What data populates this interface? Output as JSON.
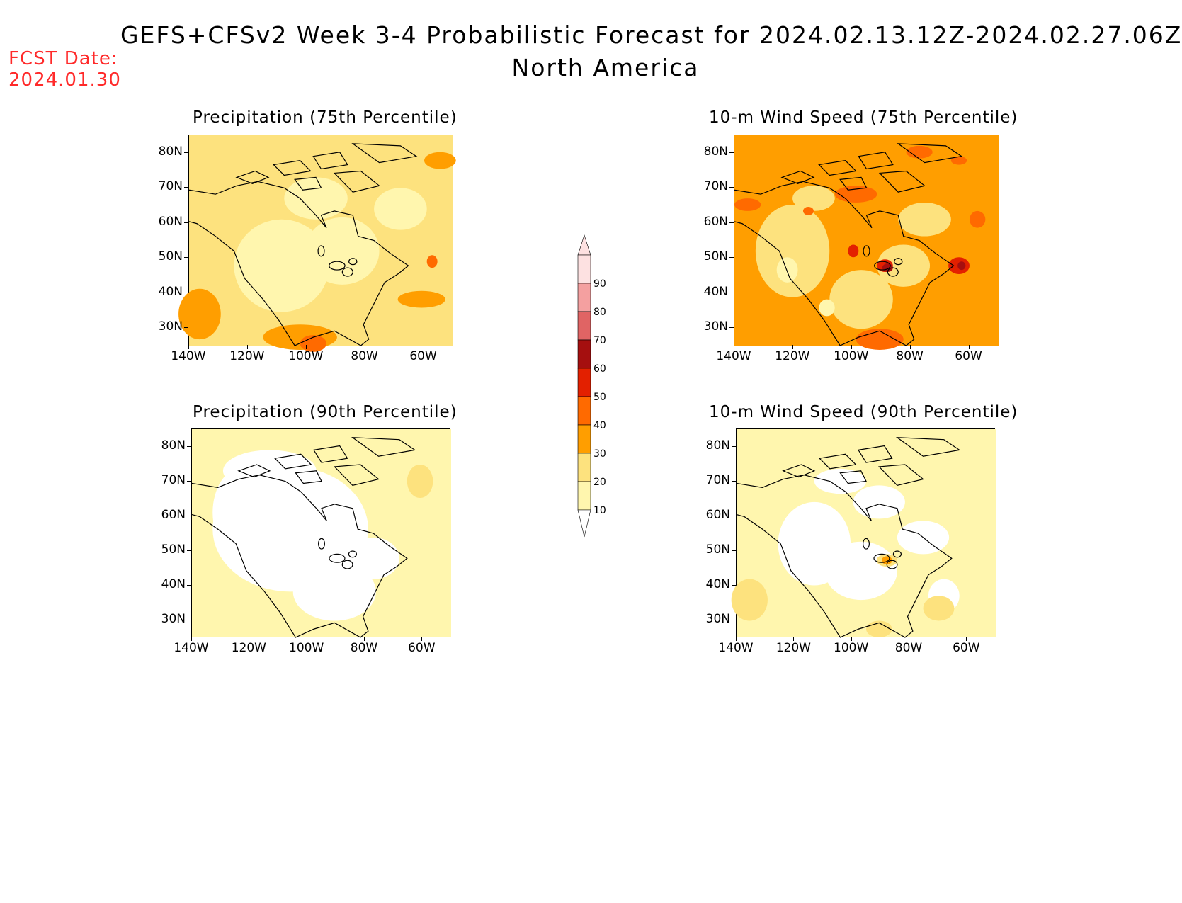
{
  "title": "GEFS+CFSv2 Week 3-4 Probabilistic Forecast for 2024.02.13.12Z-2024.02.27.06Z",
  "subtitle": "North America",
  "fcst_label": "FCST Date:",
  "fcst_date": "2024.01.30",
  "panels": [
    {
      "title": "Precipitation (75th Percentile)",
      "base": "#fde27e",
      "variant": "p75"
    },
    {
      "title": "10-m Wind Speed (75th Percentile)",
      "base": "#ff9e00",
      "variant": "w75"
    },
    {
      "title": "Precipitation (90th Percentile)",
      "base": "#fff6ae",
      "variant": "p90"
    },
    {
      "title": "10-m Wind Speed (90th Percentile)",
      "base": "#fff6ae",
      "variant": "w90"
    }
  ],
  "lat_labels": [
    "80N",
    "70N",
    "60N",
    "50N",
    "40N",
    "30N"
  ],
  "lon_labels": [
    "140W",
    "120W",
    "100W",
    "80W",
    "60W"
  ],
  "colorbar": {
    "labels": [
      "90",
      "80",
      "70",
      "60",
      "50",
      "40",
      "30",
      "20",
      "10"
    ],
    "colors": [
      "#fde1e1",
      "#f4a0a0",
      "#e06464",
      "#a50f0f",
      "#e32000",
      "#ff6a00",
      "#ff9e00",
      "#fde27e",
      "#fff6ae"
    ]
  },
  "palette": {
    "white": "#ffffff",
    "coast": "#000000",
    "fcst_red": "#ff2a2a"
  }
}
